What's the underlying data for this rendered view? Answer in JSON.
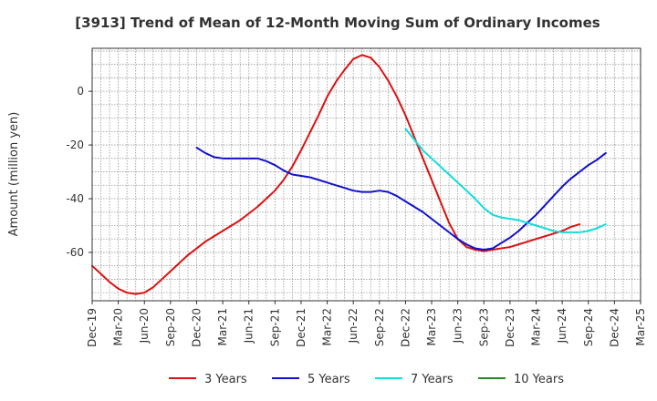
{
  "chart_data": {
    "type": "line",
    "title": "[3913]  Trend of Mean of 12-Month Moving Sum of Ordinary Incomes",
    "ylabel": "Amount (million yen)",
    "xlabel": "",
    "ylim": [
      -78,
      16
    ],
    "yticks": [
      0,
      -20,
      -40,
      -60
    ],
    "ytick_labels": [
      "0",
      "-20",
      "-40",
      "-60"
    ],
    "xticks": [
      "Dec-19",
      "Mar-20",
      "Jun-20",
      "Sep-20",
      "Dec-20",
      "Mar-21",
      "Jun-21",
      "Sep-21",
      "Dec-21",
      "Mar-22",
      "Jun-22",
      "Sep-22",
      "Dec-22",
      "Mar-23",
      "Jun-23",
      "Sep-23",
      "Dec-23",
      "Mar-24",
      "Jun-24",
      "Sep-24",
      "Dec-24",
      "Mar-25"
    ],
    "grid": true,
    "legend_position": "bottom",
    "series": [
      {
        "name": "3 Years",
        "color": "#dd1111",
        "points": [
          [
            0,
            -65
          ],
          [
            1,
            -68
          ],
          [
            2,
            -71
          ],
          [
            3,
            -73.5
          ],
          [
            4,
            -75
          ],
          [
            5,
            -75.5
          ],
          [
            6,
            -75
          ],
          [
            7,
            -73
          ],
          [
            8,
            -70
          ],
          [
            9,
            -67
          ],
          [
            10,
            -64
          ],
          [
            11,
            -61
          ],
          [
            12,
            -58.5
          ],
          [
            13,
            -56
          ],
          [
            14,
            -54
          ],
          [
            15,
            -52
          ],
          [
            16,
            -50
          ],
          [
            17,
            -48
          ],
          [
            18,
            -45.5
          ],
          [
            19,
            -43
          ],
          [
            20,
            -40
          ],
          [
            21,
            -37
          ],
          [
            22,
            -33
          ],
          [
            23,
            -28
          ],
          [
            24,
            -22
          ],
          [
            25,
            -15.5
          ],
          [
            26,
            -9
          ],
          [
            27,
            -2
          ],
          [
            28,
            3.5
          ],
          [
            29,
            8
          ],
          [
            30,
            12
          ],
          [
            31,
            13.5
          ],
          [
            32,
            12.5
          ],
          [
            33,
            9
          ],
          [
            34,
            4
          ],
          [
            35,
            -2
          ],
          [
            36,
            -9
          ],
          [
            37,
            -17
          ],
          [
            38,
            -25
          ],
          [
            39,
            -33
          ],
          [
            40,
            -41
          ],
          [
            41,
            -49
          ],
          [
            42,
            -55
          ],
          [
            43,
            -58
          ],
          [
            44,
            -59
          ],
          [
            45,
            -59.5
          ],
          [
            46,
            -59
          ],
          [
            47,
            -58.5
          ],
          [
            48,
            -58
          ],
          [
            49,
            -57
          ],
          [
            50,
            -56
          ],
          [
            51,
            -55
          ],
          [
            52,
            -54
          ],
          [
            53,
            -53
          ],
          [
            54,
            -52
          ],
          [
            55,
            -50.5
          ],
          [
            56,
            -49.5
          ]
        ]
      },
      {
        "name": "5 Years",
        "color": "#1111cc",
        "points": [
          [
            12,
            -21
          ],
          [
            13,
            -23
          ],
          [
            14,
            -24.5
          ],
          [
            15,
            -25
          ],
          [
            16,
            -25
          ],
          [
            17,
            -25
          ],
          [
            18,
            -25
          ],
          [
            19,
            -25
          ],
          [
            20,
            -26
          ],
          [
            21,
            -27.5
          ],
          [
            22,
            -29.5
          ],
          [
            23,
            -31
          ],
          [
            24,
            -31.5
          ],
          [
            25,
            -32
          ],
          [
            26,
            -33
          ],
          [
            27,
            -34
          ],
          [
            28,
            -35
          ],
          [
            29,
            -36
          ],
          [
            30,
            -37
          ],
          [
            31,
            -37.5
          ],
          [
            32,
            -37.5
          ],
          [
            33,
            -37
          ],
          [
            34,
            -37.5
          ],
          [
            35,
            -39
          ],
          [
            36,
            -41
          ],
          [
            37,
            -43
          ],
          [
            38,
            -45
          ],
          [
            39,
            -47.5
          ],
          [
            40,
            -50
          ],
          [
            41,
            -52.5
          ],
          [
            42,
            -55
          ],
          [
            43,
            -57
          ],
          [
            44,
            -58.5
          ],
          [
            45,
            -59
          ],
          [
            46,
            -58.5
          ],
          [
            47,
            -56.5
          ],
          [
            48,
            -54.5
          ],
          [
            49,
            -52
          ],
          [
            50,
            -49
          ],
          [
            51,
            -46
          ],
          [
            52,
            -42.5
          ],
          [
            53,
            -39
          ],
          [
            54,
            -35.5
          ],
          [
            55,
            -32.5
          ],
          [
            56,
            -30
          ],
          [
            57,
            -27.5
          ],
          [
            58,
            -25.5
          ],
          [
            59,
            -23
          ]
        ]
      },
      {
        "name": "7 Years",
        "color": "#11dddd",
        "points": [
          [
            36,
            -14
          ],
          [
            37,
            -18
          ],
          [
            38,
            -22
          ],
          [
            39,
            -25
          ],
          [
            40,
            -28
          ],
          [
            41,
            -31
          ],
          [
            42,
            -34
          ],
          [
            43,
            -37
          ],
          [
            44,
            -40
          ],
          [
            45,
            -43.5
          ],
          [
            46,
            -46
          ],
          [
            47,
            -47
          ],
          [
            48,
            -47.5
          ],
          [
            49,
            -48
          ],
          [
            50,
            -49
          ],
          [
            51,
            -50
          ],
          [
            52,
            -51
          ],
          [
            53,
            -52
          ],
          [
            54,
            -52.5
          ],
          [
            55,
            -52.5
          ],
          [
            56,
            -52.5
          ],
          [
            57,
            -52
          ],
          [
            58,
            -51
          ],
          [
            59,
            -49.5
          ]
        ]
      },
      {
        "name": "10 Years",
        "color": "#228B22",
        "points": []
      }
    ]
  }
}
